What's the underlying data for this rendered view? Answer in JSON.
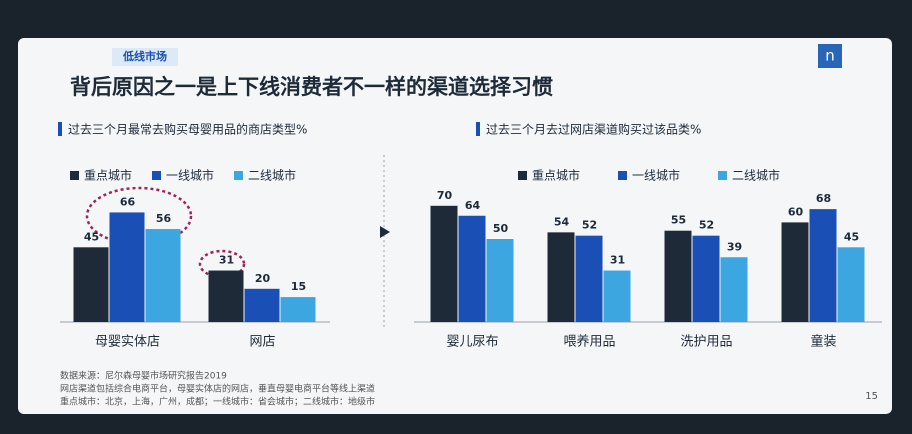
{
  "tag": "低线市场",
  "logo": "n",
  "headline": "背后原因之一是上下线消费者不一样的渠道选择习惯",
  "chart_data": [
    {
      "type": "bar",
      "title": "过去三个月最常去购买母婴用品的商店类型%",
      "categories": [
        "母婴实体店",
        "网店"
      ],
      "series": [
        {
          "name": "重点城市",
          "color": "#1e2a38",
          "values": [
            45,
            31
          ]
        },
        {
          "name": "一线城市",
          "color": "#1a4fb5",
          "values": [
            66,
            20
          ]
        },
        {
          "name": "二线城市",
          "color": "#3ba6e0",
          "values": [
            56,
            15
          ]
        }
      ]
    },
    {
      "type": "bar",
      "title": "过去三个月去过网店渠道购买过该品类%",
      "categories": [
        "婴儿尿布",
        "喂养用品",
        "洗护用品",
        "童装"
      ],
      "series": [
        {
          "name": "重点城市",
          "color": "#1e2a38",
          "values": [
            70,
            54,
            55,
            60
          ]
        },
        {
          "name": "一线城市",
          "color": "#1a4fb5",
          "values": [
            64,
            52,
            52,
            68
          ]
        },
        {
          "name": "二线城市",
          "color": "#3ba6e0",
          "values": [
            50,
            31,
            39,
            45
          ]
        }
      ]
    }
  ],
  "notes": [
    "数据来源：尼尔森母婴市场研究报告2019",
    "网店渠道包括综合电商平台，母婴实体店的网店，垂直母婴电商平台等线上渠道",
    "重点城市：北京，上海，广州，成都；一线城市：省会城市；二线城市：地级市"
  ],
  "page_number": "15"
}
